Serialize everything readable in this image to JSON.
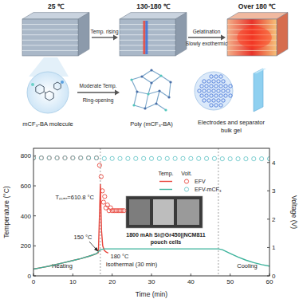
{
  "schematic": {
    "stages": [
      "25 ℃",
      "130-180 ℃",
      "Over 180 ℃"
    ],
    "arrow_1": "Temp. rising",
    "arrow_2": [
      "Gelatination",
      "Slowly exothermic"
    ],
    "molecule": "mCF₃-BA molecule",
    "reaction": [
      "Moderate Temp.",
      "Ring-opening"
    ],
    "polymer": "Poly (mCF₃-BA)",
    "gel": [
      "Electrodes and separator",
      "bulk gel"
    ]
  },
  "chart_data": {
    "type": "line",
    "x_label": "Time (min)",
    "y_label": "Temperature (°C)",
    "y2_label": "Voltage (V)",
    "xlim": [
      0,
      60
    ],
    "xticks": [
      0,
      10,
      20,
      30,
      40,
      50,
      60
    ],
    "ylim": [
      0,
      850
    ],
    "yticks": [
      0,
      200,
      400,
      600,
      800
    ],
    "y2lim": [
      0,
      4.5
    ],
    "y2ticks": [
      0,
      1,
      2,
      3,
      4
    ],
    "grid": false,
    "legend": "top",
    "legend_titles": [
      "Temp.",
      "Volt."
    ],
    "vlines": [
      17,
      47
    ],
    "annotations": {
      "tmax": "Tₘₐₓ=610.8 °C",
      "t150": "150 °C",
      "t180": "180 °C",
      "isothermal": "Isothermal (30 min)",
      "heating": "Heating",
      "cooling": "Cooling",
      "cell": "1800 mAh Si@Gr450||NCM811",
      "cell2": "pouch cells"
    },
    "series": [
      {
        "name": "EFV",
        "type": "line",
        "color": "#e8453c",
        "line_style": "solid",
        "x": [
          0,
          2,
          4,
          6,
          8,
          10,
          12,
          14,
          15,
          16,
          16.5,
          17,
          17.3,
          17.6,
          18,
          18.5,
          19
        ],
        "values": [
          45,
          55,
          65,
          78,
          90,
          102,
          115,
          130,
          138,
          148,
          155,
          610.8,
          300,
          200,
          170,
          158,
          152
        ]
      },
      {
        "name": "EFV-mCF₃",
        "type": "line",
        "color": "#3db39c",
        "line_style": "solid",
        "x": [
          0,
          2,
          4,
          6,
          8,
          10,
          12,
          14,
          16,
          17,
          18,
          20,
          30,
          40,
          47,
          48,
          50,
          52,
          54,
          56,
          58,
          60
        ],
        "values": [
          45,
          55,
          65,
          78,
          90,
          102,
          115,
          130,
          148,
          175,
          180,
          180,
          180,
          180,
          180,
          175,
          150,
          125,
          105,
          88,
          75,
          65
        ]
      },
      {
        "type": "scatter",
        "axis": "y2",
        "marker": "circle",
        "color": "#e8453c",
        "x": [
          0,
          2,
          4,
          6,
          8,
          10,
          12,
          14,
          16,
          16.8,
          17.2,
          17.5,
          17.8,
          18.1,
          18.4,
          18.8,
          19.2,
          19.6,
          20,
          20.5,
          21,
          21.5,
          22,
          22.5,
          23
        ],
        "values": [
          4.16,
          4.16,
          4.16,
          4.16,
          4.16,
          4.16,
          4.16,
          4.16,
          4.16,
          3.9,
          3.5,
          3.0,
          2.6,
          2.8,
          2.4,
          2.5,
          2.3,
          2.4,
          2.3,
          2.3,
          2.3,
          2.3,
          2.3,
          2.3,
          2.3
        ]
      },
      {
        "type": "scatter",
        "axis": "y2",
        "marker": "circle",
        "color": "#6cc7c9",
        "x": [
          0,
          2,
          4,
          6,
          8,
          10,
          12,
          14,
          16,
          18,
          20,
          22,
          24,
          26,
          28,
          30,
          32,
          34,
          36,
          38,
          40,
          42,
          44,
          46,
          48,
          50,
          52,
          54,
          56,
          58,
          60
        ],
        "values": [
          4.16,
          4.16,
          4.16,
          4.16,
          4.16,
          4.16,
          4.16,
          4.16,
          4.16,
          4.14,
          4.14,
          4.14,
          4.14,
          4.14,
          4.14,
          4.14,
          4.14,
          4.14,
          4.14,
          4.14,
          4.14,
          4.14,
          4.14,
          4.14,
          4.13,
          4.13,
          4.13,
          4.13,
          4.13,
          4.13,
          4.13
        ]
      }
    ]
  }
}
